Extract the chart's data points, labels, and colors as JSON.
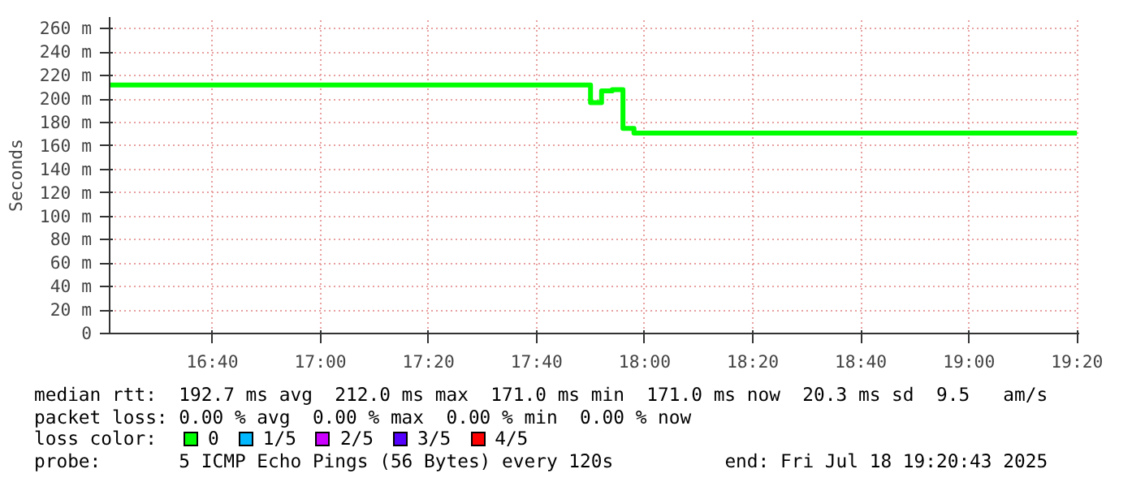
{
  "chart_data": {
    "type": "step",
    "ylabel": "Seconds",
    "x": [
      16.35,
      17.833,
      17.867,
      17.9,
      17.933,
      17.967,
      19.333
    ],
    "series": [
      {
        "name": "0",
        "color": "#00ff00",
        "values": [
          212,
          197,
          207,
          208,
          175,
          171,
          171
        ]
      },
      {
        "name": "1/5",
        "color": "#00b8ff",
        "values": [
          null,
          null,
          null,
          null,
          null,
          null,
          null
        ]
      },
      {
        "name": "2/5",
        "color": "#cc00ff",
        "values": [
          null,
          null,
          null,
          null,
          null,
          null,
          null
        ]
      },
      {
        "name": "3/5",
        "color": "#5500ff",
        "values": [
          null,
          null,
          null,
          null,
          null,
          null,
          null
        ]
      },
      {
        "name": "4/5",
        "color": "#ff0000",
        "values": [
          null,
          null,
          null,
          null,
          null,
          null,
          null
        ]
      }
    ],
    "legend_title": "loss color:",
    "legend": "bottom",
    "grid": true,
    "xlim": [
      16.35,
      19.34
    ],
    "xticks": [
      {
        "value": 16.6667,
        "label": "16:40"
      },
      {
        "value": 17.0,
        "label": "17:00"
      },
      {
        "value": 17.3333,
        "label": "17:20"
      },
      {
        "value": 17.6667,
        "label": "17:40"
      },
      {
        "value": 18.0,
        "label": "18:00"
      },
      {
        "value": 18.3333,
        "label": "18:20"
      },
      {
        "value": 18.6667,
        "label": "18:40"
      },
      {
        "value": 19.0,
        "label": "19:00"
      },
      {
        "value": 19.3333,
        "label": "19:20"
      }
    ],
    "ylim": [
      0,
      270
    ],
    "yticks": [
      0,
      {
        "value": 20,
        "label": "20 m"
      },
      {
        "value": 40,
        "label": "40 m"
      },
      {
        "value": 60,
        "label": "60 m"
      },
      {
        "value": 80,
        "label": "80 m"
      },
      {
        "value": 100,
        "label": "100 m"
      },
      {
        "value": 120,
        "label": "120 m"
      },
      {
        "value": 140,
        "label": "140 m"
      },
      {
        "value": 160,
        "label": "160 m"
      },
      {
        "value": 180,
        "label": "180 m"
      },
      {
        "value": 200,
        "label": "200 m"
      },
      {
        "value": 220,
        "label": "220 m"
      },
      {
        "value": 240,
        "label": "240 m"
      },
      {
        "value": 260,
        "label": "260 m"
      }
    ],
    "annotations": [
      "median rtt:  192.7 ms avg  212.0 ms max  171.0 ms min  171.0 ms now  20.3 ms sd  9.5   am/s",
      "packet loss: 0.00 % avg  0.00 % max  0.00 % min  0.00 % now",
      "probe:       5 ICMP Echo Pings (56 Bytes) every 120s",
      "end: Fri Jul 18 19:20:43 2025"
    ]
  }
}
